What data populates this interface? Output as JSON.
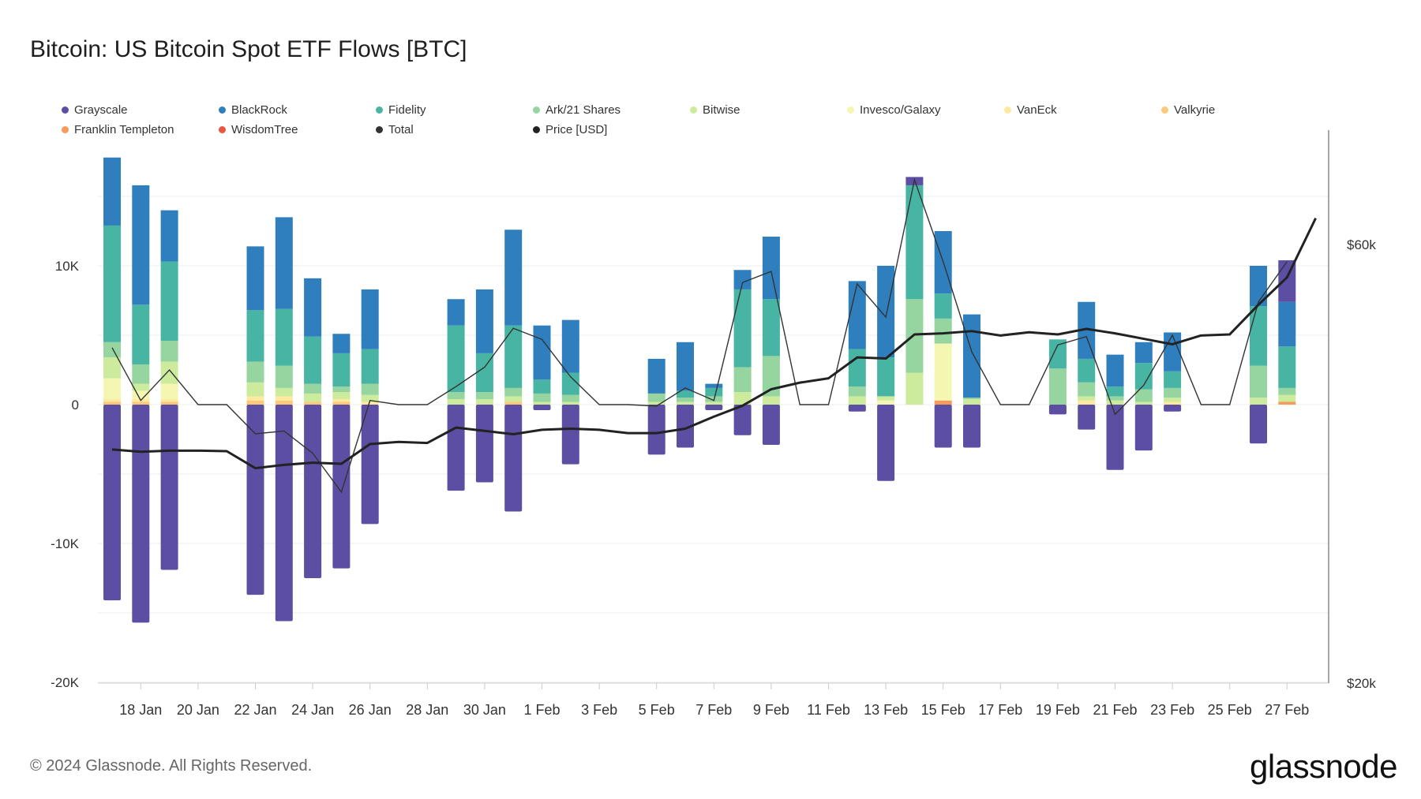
{
  "title": "Bitcoin: US Bitcoin Spot ETF Flows [BTC]",
  "footer": "© 2024 Glassnode. All Rights Reserved.",
  "brand": "glassnode",
  "chart_data": {
    "type": "bar",
    "stacked": true,
    "legend": [
      {
        "name": "Grayscale",
        "color": "#5c4fa3"
      },
      {
        "name": "BlackRock",
        "color": "#2f7fbf"
      },
      {
        "name": "Fidelity",
        "color": "#48b5a4"
      },
      {
        "name": "Ark/21 Shares",
        "color": "#96d59f"
      },
      {
        "name": "Bitwise",
        "color": "#cdeb9d"
      },
      {
        "name": "Invesco/Galaxy",
        "color": "#f4f7b2"
      },
      {
        "name": "VanEck",
        "color": "#fde9a0"
      },
      {
        "name": "Valkyrie",
        "color": "#fcc97a"
      },
      {
        "name": "Franklin Templeton",
        "color": "#f79a5b"
      },
      {
        "name": "WisdomTree",
        "color": "#e8573d"
      },
      {
        "name": "Total",
        "color": "#333333"
      },
      {
        "name": "Price [USD]",
        "color": "#222222"
      }
    ],
    "y_left": {
      "ticks": [
        10000,
        0,
        -10000,
        -20000
      ],
      "tick_labels": [
        "10K",
        "0",
        "-10K",
        "-20K"
      ],
      "range": [
        -20000,
        20000
      ]
    },
    "y_right": {
      "ticks": [
        60000,
        20000
      ],
      "tick_labels": [
        "$60k",
        "$20k"
      ],
      "range": [
        20000,
        70000
      ]
    },
    "x_labels": [
      "18 Jan",
      "20 Jan",
      "22 Jan",
      "24 Jan",
      "26 Jan",
      "28 Jan",
      "30 Jan",
      "1 Feb",
      "3 Feb",
      "5 Feb",
      "7 Feb",
      "9 Feb",
      "11 Feb",
      "13 Feb",
      "15 Feb",
      "17 Feb",
      "19 Feb",
      "21 Feb",
      "23 Feb",
      "25 Feb",
      "27 Feb"
    ],
    "x_label_days": [
      1,
      3,
      5,
      7,
      9,
      11,
      13,
      15,
      17,
      19,
      21,
      23,
      25,
      27,
      29,
      31,
      33,
      35,
      37,
      39,
      41
    ],
    "days": [
      {
        "day": 0,
        "neg": {
          "Grayscale": 14100
        },
        "pos": {
          "Valkyrie": 200,
          "VanEck": 200,
          "Invesco/Galaxy": 1500,
          "Bitwise": 1500,
          "Ark/21 Shares": 1100,
          "Fidelity": 8400,
          "BlackRock": 4900
        },
        "total": 4100,
        "price": 41300
      },
      {
        "day": 1,
        "neg": {
          "Grayscale": 15700
        },
        "pos": {
          "Valkyrie": 200,
          "VanEck": 200,
          "Invesco/Galaxy": 600,
          "Bitwise": 500,
          "Ark/21 Shares": 1400,
          "Fidelity": 4300,
          "BlackRock": 8600
        },
        "total": 300,
        "price": 41100
      },
      {
        "day": 2,
        "neg": {
          "Grayscale": 11900
        },
        "pos": {
          "Valkyrie": 200,
          "VanEck": 200,
          "Invesco/Galaxy": 1100,
          "Bitwise": 1600,
          "Ark/21 Shares": 1500,
          "Fidelity": 5700,
          "BlackRock": 3700
        },
        "total": 2500,
        "price": 41200
      },
      {
        "day": 3,
        "neg": {},
        "pos": {},
        "total": 0,
        "price": 41200
      },
      {
        "day": 4,
        "neg": {},
        "pos": {},
        "total": 0,
        "price": 41150
      },
      {
        "day": 5,
        "neg": {
          "Grayscale": 13700
        },
        "pos": {
          "Valkyrie": 300,
          "VanEck": 300,
          "Bitwise": 1000,
          "Ark/21 Shares": 1500,
          "Fidelity": 3700,
          "BlackRock": 4600
        },
        "total": -2100,
        "price": 39600
      },
      {
        "day": 6,
        "neg": {
          "Grayscale": 15600
        },
        "pos": {
          "Valkyrie": 300,
          "VanEck": 300,
          "Bitwise": 600,
          "Ark/21 Shares": 1600,
          "Fidelity": 4100,
          "BlackRock": 6600
        },
        "total": -1900,
        "price": 39900
      },
      {
        "day": 7,
        "neg": {
          "Grayscale": 12500
        },
        "pos": {
          "Valkyrie": 200,
          "Bitwise": 600,
          "Ark/21 Shares": 700,
          "Fidelity": 3400,
          "BlackRock": 4200
        },
        "total": -3500,
        "price": 40100
      },
      {
        "day": 8,
        "neg": {
          "Grayscale": 11800
        },
        "pos": {
          "Valkyrie": 200,
          "VanEck": 200,
          "Bitwise": 500,
          "Ark/21 Shares": 400,
          "Fidelity": 2400,
          "BlackRock": 1400
        },
        "total": -6300,
        "price": 40000
      },
      {
        "day": 9,
        "neg": {
          "Grayscale": 8600
        },
        "pos": {
          "VanEck": 200,
          "Bitwise": 500,
          "Ark/21 Shares": 800,
          "Fidelity": 2500,
          "BlackRock": 4300
        },
        "total": 300,
        "price": 41800
      },
      {
        "day": 10,
        "neg": {},
        "pos": {},
        "total": 0,
        "price": 42000
      },
      {
        "day": 11,
        "neg": {},
        "pos": {},
        "total": 0,
        "price": 41900
      },
      {
        "day": 12,
        "neg": {
          "Grayscale": 6200
        },
        "pos": {
          "Bitwise": 400,
          "Ark/21 Shares": 500,
          "Fidelity": 4800,
          "BlackRock": 1900
        },
        "total": 1300,
        "price": 43300
      },
      {
        "day": 13,
        "neg": {
          "Grayscale": 5600
        },
        "pos": {
          "Bitwise": 400,
          "Ark/21 Shares": 500,
          "Fidelity": 2800,
          "BlackRock": 4600
        },
        "total": 2700,
        "price": 43000
      },
      {
        "day": 14,
        "neg": {
          "Grayscale": 7700
        },
        "pos": {
          "Valkyrie": 200,
          "Bitwise": 400,
          "Ark/21 Shares": 600,
          "Fidelity": 4500,
          "BlackRock": 6900
        },
        "total": 5500,
        "price": 42700
      },
      {
        "day": 15,
        "neg": {
          "Grayscale": 400
        },
        "pos": {
          "Bitwise": 200,
          "Ark/21 Shares": 600,
          "Fidelity": 1000,
          "BlackRock": 3900
        },
        "total": 4700,
        "price": 43100
      },
      {
        "day": 16,
        "neg": {
          "Grayscale": 4300
        },
        "pos": {
          "Bitwise": 200,
          "Ark/21 Shares": 500,
          "Fidelity": 1600,
          "BlackRock": 3800
        },
        "total": 2000,
        "price": 43200
      },
      {
        "day": 17,
        "neg": {},
        "pos": {},
        "total": 0,
        "price": 43100
      },
      {
        "day": 18,
        "neg": {},
        "pos": {},
        "total": 0,
        "price": 42800
      },
      {
        "day": 19,
        "neg": {
          "Grayscale": 3600
        },
        "pos": {
          "Bitwise": 200,
          "Ark/21 Shares": 600,
          "BlackRock": 2500
        },
        "total": -100,
        "price": 42800
      },
      {
        "day": 20,
        "neg": {
          "Grayscale": 3100
        },
        "pos": {
          "Bitwise": 200,
          "Ark/21 Shares": 300,
          "Fidelity": 500,
          "BlackRock": 3500
        },
        "total": 1200,
        "price": 43200
      },
      {
        "day": 21,
        "neg": {
          "Grayscale": 400
        },
        "pos": {
          "Bitwise": 200,
          "Ark/21 Shares": 400,
          "Fidelity": 600,
          "BlackRock": 300
        },
        "total": 300,
        "price": 44300
      },
      {
        "day": 22,
        "neg": {
          "Grayscale": 2200
        },
        "pos": {
          "Bitwise": 900,
          "Ark/21 Shares": 1800,
          "Fidelity": 5600,
          "BlackRock": 1400
        },
        "total": 8800,
        "price": 45300
      },
      {
        "day": 23,
        "neg": {
          "Grayscale": 2900
        },
        "pos": {
          "Bitwise": 600,
          "Ark/21 Shares": 2900,
          "Fidelity": 4100,
          "BlackRock": 4500
        },
        "total": 9600,
        "price": 46800
      },
      {
        "day": 24,
        "neg": {},
        "pos": {},
        "total": 0,
        "price": 47400
      },
      {
        "day": 25,
        "neg": {},
        "pos": {},
        "total": 0,
        "price": 47800
      },
      {
        "day": 26,
        "neg": {
          "Grayscale": 500
        },
        "pos": {
          "Bitwise": 600,
          "Ark/21 Shares": 700,
          "Fidelity": 2700,
          "BlackRock": 4900
        },
        "total": 8700,
        "price": 49700
      },
      {
        "day": 27,
        "neg": {
          "Grayscale": 5500
        },
        "pos": {
          "Invesco/Galaxy": 300,
          "Bitwise": 300,
          "Fidelity": 2800,
          "BlackRock": 6600
        },
        "total": 6300,
        "price": 49600
      },
      {
        "day": 28,
        "neg": {},
        "pos": {
          "Grayscale": 600,
          "Bitwise": 2300,
          "Ark/21 Shares": 5300,
          "Fidelity": 8200,
          "BlackRock": -100
        },
        "total": 16200,
        "price": 51800
      },
      {
        "day": 29,
        "neg": {
          "Grayscale": 3100
        },
        "pos": {
          "Franklin Templeton": 300,
          "Invesco/Galaxy": 4100,
          "Ark/21 Shares": 1800,
          "Fidelity": 1800,
          "BlackRock": 4500
        },
        "total": 10300,
        "price": 51900
      },
      {
        "day": 30,
        "neg": {
          "Grayscale": 3100
        },
        "pos": {
          "Bitwise": 400,
          "Ark/21 Shares": 100,
          "BlackRock": 6000
        },
        "total": 3800,
        "price": 52100
      },
      {
        "day": 31,
        "neg": {},
        "pos": {},
        "total": 0,
        "price": 51700
      },
      {
        "day": 32,
        "neg": {},
        "pos": {},
        "total": 0,
        "price": 52000
      },
      {
        "day": 33,
        "neg": {
          "Grayscale": 700
        },
        "pos": {
          "Ark/21 Shares": 2600,
          "Fidelity": 2100
        },
        "total": 4300,
        "price": 51800
      },
      {
        "day": 34,
        "neg": {
          "Grayscale": 1800
        },
        "pos": {
          "VanEck": 300,
          "Bitwise": 300,
          "Ark/21 Shares": 1000,
          "Fidelity": 1700,
          "BlackRock": 4100
        },
        "total": 4900,
        "price": 52300
      },
      {
        "day": 35,
        "neg": {
          "Grayscale": 4700
        },
        "pos": {
          "Bitwise": 300,
          "Ark/21 Shares": 300,
          "Fidelity": 700,
          "BlackRock": 2300
        },
        "total": -700,
        "price": 51900
      },
      {
        "day": 36,
        "neg": {
          "Grayscale": 3300
        },
        "pos": {
          "Bitwise": 200,
          "Ark/21 Shares": 900,
          "Fidelity": 1900,
          "BlackRock": 1500
        },
        "total": 1400,
        "price": 51400
      },
      {
        "day": 37,
        "neg": {
          "Grayscale": 500
        },
        "pos": {
          "VanEck": 200,
          "Bitwise": 300,
          "Ark/21 Shares": 700,
          "Fidelity": 1200,
          "BlackRock": 2800
        },
        "total": 5000,
        "price": 50900
      },
      {
        "day": 38,
        "neg": {},
        "pos": {},
        "total": 0,
        "price": 51700
      },
      {
        "day": 39,
        "neg": {},
        "pos": {},
        "total": 0,
        "price": 51800
      },
      {
        "day": 40,
        "neg": {
          "Grayscale": 2800
        },
        "pos": {
          "Bitwise": 500,
          "Ark/21 Shares": 2300,
          "Fidelity": 4300,
          "BlackRock": 2900
        },
        "total": 7400,
        "price": 54500
      },
      {
        "day": 41,
        "neg": {},
        "pos": {
          "Franklin Templeton": 200,
          "Bitwise": 500,
          "Ark/21 Shares": 500,
          "Fidelity": 3000,
          "BlackRock": 3200,
          "Grayscale": 3000
        },
        "total": 10300,
        "price": 57000
      },
      {
        "day": 42,
        "neg": {},
        "pos": {},
        "total": null,
        "price": 62400
      }
    ]
  }
}
